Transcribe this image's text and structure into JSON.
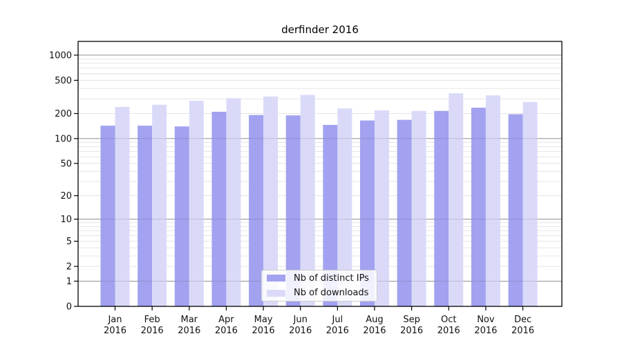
{
  "title": "derfinder 2016",
  "chart_data": {
    "type": "bar",
    "title": "derfinder 2016",
    "y_scale": "log1p",
    "categories": [
      "Jan",
      "Feb",
      "Mar",
      "Apr",
      "May",
      "Jun",
      "Jul",
      "Aug",
      "Sep",
      "Oct",
      "Nov",
      "Dec"
    ],
    "year_label": "2016",
    "series": [
      {
        "name": "Nb of distinct IPs",
        "color": "#a2a2f0",
        "values": [
          143,
          143,
          140,
          210,
          192,
          190,
          146,
          165,
          168,
          215,
          235,
          196
        ]
      },
      {
        "name": "Nb of downloads",
        "color": "#dadaf8",
        "values": [
          240,
          255,
          285,
          305,
          320,
          335,
          230,
          218,
          215,
          350,
          330,
          275
        ]
      }
    ],
    "y_ticks": [
      0,
      1,
      2,
      5,
      10,
      20,
      50,
      100,
      200,
      500,
      1000
    ],
    "ylim": [
      0,
      1460
    ],
    "xlabel": "",
    "ylabel": "",
    "grid": true,
    "legend_position": "inside-bottom-center"
  },
  "colors": {
    "bar_distinct_ips": "#a2a2f0",
    "bar_downloads": "#dadaf8",
    "grid_major": "#a6a6a6",
    "grid_minor": "#e4e4e4",
    "axis": "#000000",
    "text": "#111111",
    "background": "#ffffff"
  }
}
